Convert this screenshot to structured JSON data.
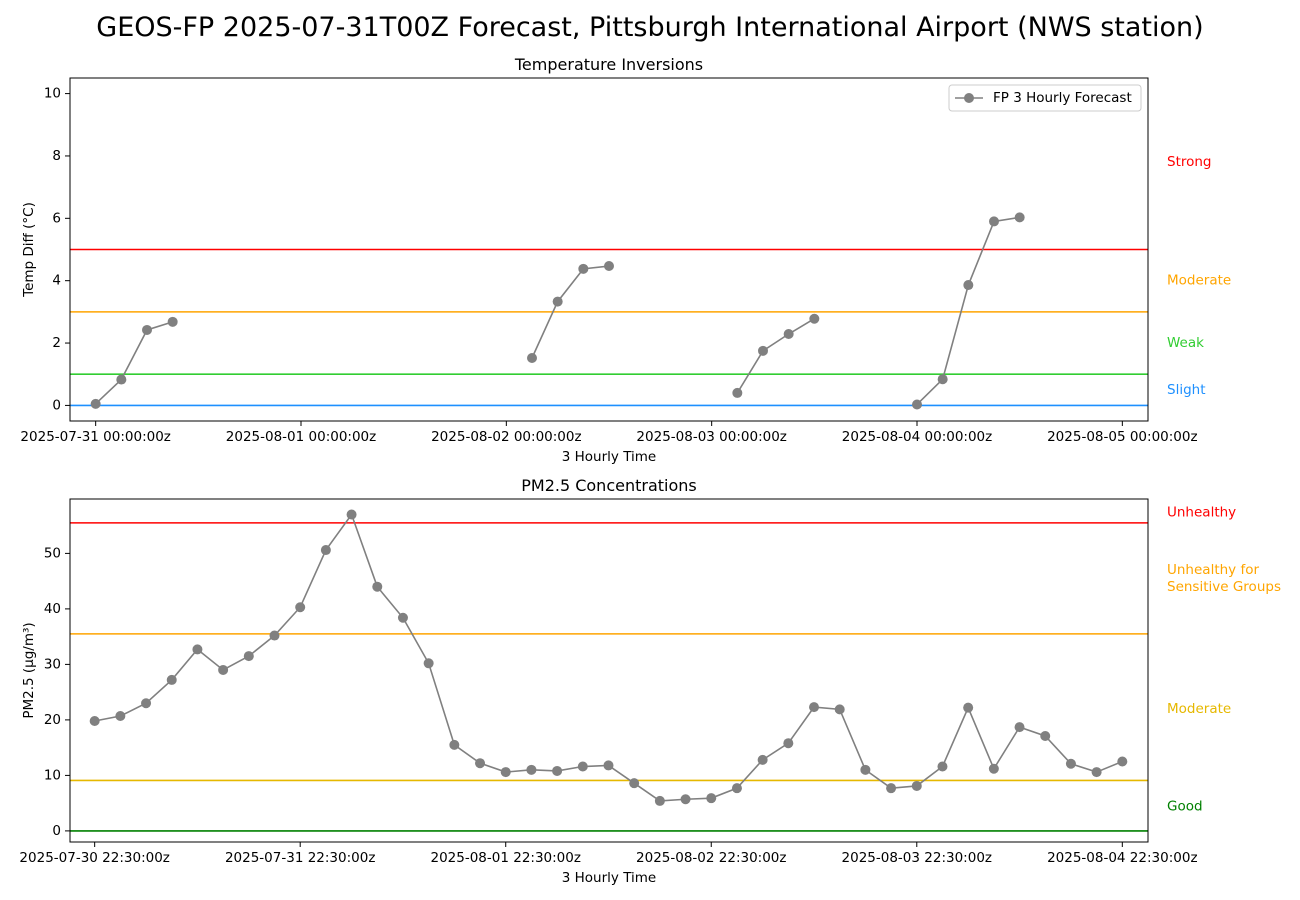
{
  "page_title": "GEOS-FP 2025-07-31T00Z Forecast, Pittsburgh International Airport (NWS station)",
  "colors": {
    "series": "#808080",
    "red": "#ff0000",
    "orange": "#ffa500",
    "green": "#32cd32",
    "blue": "#1e90ff",
    "gold": "#e6b800",
    "darkgreen": "#008000"
  },
  "chart_data": [
    {
      "type": "line",
      "title": "Temperature Inversions",
      "xlabel": "3 Hourly Time",
      "ylabel": "Temp Diff (°C)",
      "ylim": [
        -0.5,
        10.5
      ],
      "yticks": [
        0,
        2,
        4,
        6,
        8,
        10
      ],
      "xlim": [
        -0.125,
        5.125
      ],
      "xticks": [
        0,
        1,
        2,
        3,
        4,
        5
      ],
      "xtick_labels": [
        "2025-07-31 00:00:00z",
        "2025-08-01 00:00:00z",
        "2025-08-02 00:00:00z",
        "2025-08-03 00:00:00z",
        "2025-08-04 00:00:00z",
        "2025-08-05 00:00:00z"
      ],
      "legend": {
        "label": "FP 3 Hourly Forecast",
        "position": "upper right"
      },
      "series": [
        {
          "name": "FP 3 Hourly Forecast",
          "x": [
            0,
            0.125,
            0.25,
            0.375,
            2.125,
            2.25,
            2.375,
            2.5,
            3.125,
            3.25,
            3.375,
            3.5,
            4.0,
            4.125,
            4.25,
            4.375,
            4.5
          ],
          "y": [
            0.05,
            0.83,
            2.42,
            2.68,
            1.52,
            3.33,
            4.38,
            4.47,
            0.4,
            1.75,
            2.29,
            2.78,
            0.03,
            0.84,
            3.86,
            5.9,
            6.03
          ],
          "segments": [
            [
              0,
              4
            ],
            [
              4,
              8
            ],
            [
              8,
              12
            ],
            [
              12,
              17
            ]
          ]
        }
      ],
      "thresholds": [
        {
          "value": 5,
          "color": "#ff0000",
          "label": "Strong",
          "label_y": 7.8
        },
        {
          "value": 3,
          "color": "#ffa500",
          "label": "Moderate",
          "label_y": 4.0
        },
        {
          "value": 1,
          "color": "#32cd32",
          "label": "Weak",
          "label_y": 2.0
        },
        {
          "value": 0,
          "color": "#1e90ff",
          "label": "Slight",
          "label_y": 0.5
        }
      ]
    },
    {
      "type": "line",
      "title": "PM2.5 Concentrations",
      "xlabel": "3 Hourly Time",
      "ylabel": "PM2.5 (μg/m³)",
      "ylim": [
        -2,
        59.8
      ],
      "yticks": [
        0,
        10,
        20,
        30,
        40,
        50
      ],
      "xlim": [
        -0.12,
        5.125
      ],
      "xticks": [
        0,
        1,
        2,
        3,
        4,
        5
      ],
      "xtick_labels": [
        "2025-07-30 22:30:00z",
        "2025-07-31 22:30:00z",
        "2025-08-01 22:30:00z",
        "2025-08-02 22:30:00z",
        "2025-08-03 22:30:00z",
        "2025-08-04 22:30:00z"
      ],
      "series": [
        {
          "name": "FP 3 Hourly Forecast",
          "x": [
            0,
            0.125,
            0.25,
            0.375,
            0.5,
            0.625,
            0.75,
            0.875,
            1.0,
            1.125,
            1.25,
            1.375,
            1.5,
            1.625,
            1.75,
            1.875,
            2.0,
            2.125,
            2.25,
            2.375,
            2.5,
            2.625,
            2.75,
            2.875,
            3.0,
            3.125,
            3.25,
            3.375,
            3.5,
            3.625,
            3.75,
            3.875,
            4.0,
            4.125,
            4.25,
            4.375,
            4.5,
            4.625,
            4.75,
            4.875,
            5.0
          ],
          "y": [
            19.8,
            20.7,
            23.0,
            27.2,
            32.7,
            29.0,
            31.5,
            35.2,
            40.3,
            50.6,
            57.0,
            44.0,
            38.4,
            30.2,
            15.5,
            12.2,
            10.6,
            11.0,
            10.8,
            11.6,
            11.8,
            8.6,
            5.4,
            5.7,
            5.9,
            7.7,
            12.8,
            15.8,
            22.3,
            21.9,
            11.0,
            7.7,
            8.1,
            11.6,
            22.2,
            11.2,
            18.7,
            17.1,
            12.1,
            10.6,
            12.5
          ],
          "segments": [
            [
              0,
              41
            ]
          ]
        }
      ],
      "thresholds": [
        {
          "value": 55.5,
          "color": "#ff0000",
          "label": "Unhealthy",
          "label_y": 57.4
        },
        {
          "value": 35.5,
          "color": "#ffa500",
          "label": "Unhealthy for Sensitive Groups",
          "label_lines": [
            "Unhealthy for",
            "Sensitive Groups"
          ],
          "label_y": 47.0
        },
        {
          "value": 9.1,
          "color": "#e6b800",
          "label": "Moderate",
          "label_y": 22.0
        },
        {
          "value": 0,
          "color": "#008000",
          "label": "Good",
          "label_y": 4.4
        }
      ]
    }
  ]
}
